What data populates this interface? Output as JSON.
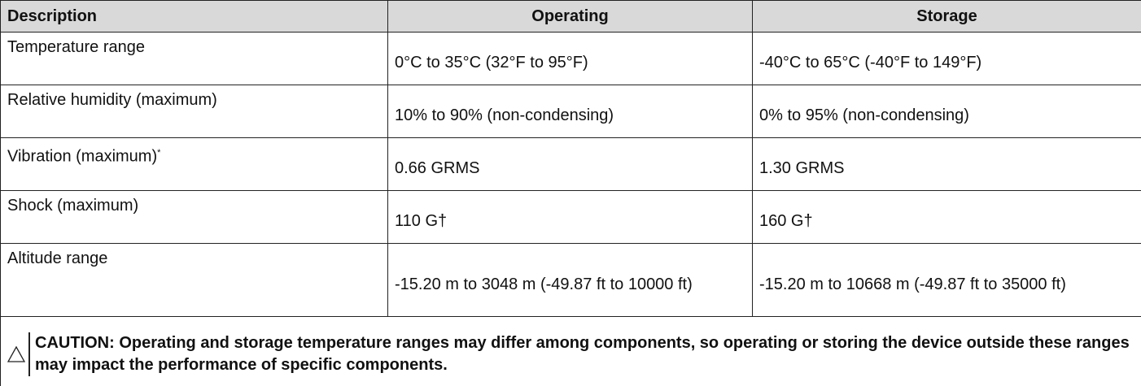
{
  "table": {
    "header": [
      "Description",
      "Operating",
      "Storage"
    ],
    "rows": [
      [
        "Temperature range",
        "0°C to 35°C (32°F to 95°F)",
        "-40°C to 65°C (-40°F to 149°F)"
      ],
      [
        "Relative humidity (maximum)",
        "10% to 90% (non-condensing)",
        "0% to 95% (non-condensing)"
      ],
      [
        {
          "text": "Vibration (maximum)",
          "sup": "*"
        },
        "0.66 GRMS",
        "1.30 GRMS"
      ],
      [
        "Shock (maximum)",
        "110 G†",
        "160 G†"
      ],
      [
        "Altitude range",
        "-15.20 m to 3048 m (-49.87 ft to 10000 ft)",
        "-15.20 m to 10668 m (-49.87 ft to 35000 ft)"
      ]
    ],
    "caution": "CAUTION: Operating and storage temperature ranges may differ among components, so operating or storing the device outside these ranges may impact the performance of specific components."
  }
}
